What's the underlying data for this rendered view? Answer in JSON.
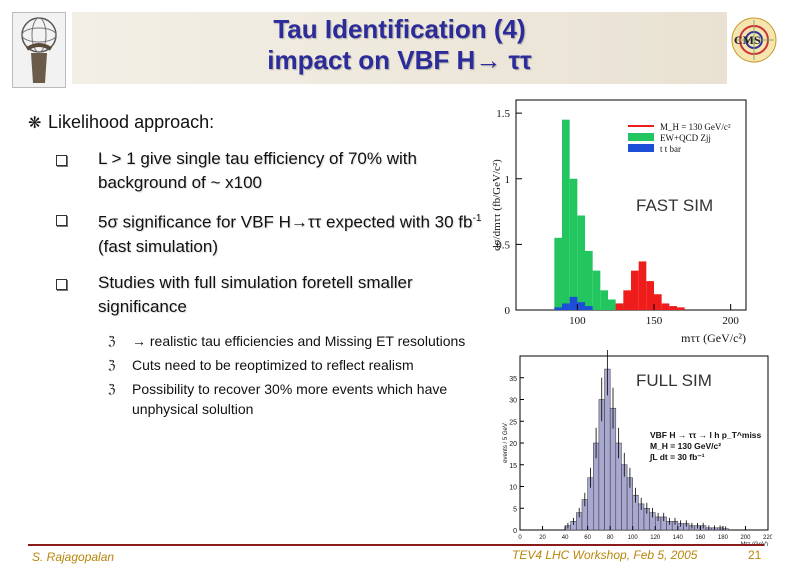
{
  "slide": {
    "title_line1": "Tau Identification (4)",
    "title_line2": "impact on VBF H→ ττ",
    "heading": "Likelihood approach:",
    "bullets": [
      {
        "text": "L > 1 give single  tau efficiency of 70% with background of ~ x100"
      },
      {
        "text_main": "5σ significance for VBF H→ττ expected with 30 fb",
        "text_sup": "-1",
        "text_tail": " (fast simulation)"
      },
      {
        "text": "Studies with full simulation foretell smaller significance"
      }
    ],
    "subbullets": [
      "→ realistic tau efficiencies and Missing ET resolutions",
      "Cuts need to be reoptimized to reflect realism",
      "Possibility to recover 30% more events which have unphysical solultion"
    ],
    "fast_label": "FAST SIM",
    "full_label": "FULL SIM",
    "footer_left": "S. Rajagopalan",
    "footer_center": "TEV4 LHC Workshop, Feb 5, 2005",
    "page_number": "21"
  },
  "chart_data": [
    {
      "type": "bar",
      "title": "",
      "ylabel": "dσ/dmττ (fb/GeV/c²)",
      "xlabel": "mττ (GeV/c²)",
      "xlim": [
        60,
        210
      ],
      "ylim": [
        0,
        1.6
      ],
      "x_ticks": [
        "100",
        "150",
        "200"
      ],
      "y_ticks": [
        "0",
        "0.5",
        "1",
        "1.5"
      ],
      "legend": [
        "M_H = 130 GeV/c²",
        "EW+QCD Zjj",
        "t t bar"
      ],
      "series": [
        {
          "name": "EW+QCD Zjj",
          "color": "#22c55e",
          "x": [
            85,
            90,
            95,
            100,
            105,
            110,
            115,
            120,
            125,
            130
          ],
          "values": [
            0.55,
            1.45,
            1.0,
            0.72,
            0.45,
            0.3,
            0.15,
            0.08,
            0.05,
            0.03
          ]
        },
        {
          "name": "M_H = 130 GeV/c²",
          "color": "#ef1c1c",
          "x": [
            125,
            130,
            135,
            140,
            145,
            150,
            155,
            160,
            165
          ],
          "values": [
            0.05,
            0.15,
            0.3,
            0.37,
            0.22,
            0.12,
            0.05,
            0.03,
            0.02
          ]
        },
        {
          "name": "t t bar",
          "color": "#1d4ed8",
          "x": [
            85,
            90,
            95,
            100,
            105
          ],
          "values": [
            0.02,
            0.05,
            0.1,
            0.06,
            0.03
          ]
        }
      ]
    },
    {
      "type": "bar",
      "title": "",
      "ylabel": "events / 5 GeV",
      "xlabel": "Mττ (GeV)",
      "xlim": [
        0,
        220
      ],
      "ylim": [
        0,
        40
      ],
      "x_ticks": [
        "0",
        "20",
        "40",
        "60",
        "80",
        "100",
        "120",
        "140",
        "160",
        "180",
        "200",
        "220"
      ],
      "y_ticks": [
        "0",
        "5",
        "10",
        "15",
        "20",
        "25",
        "30",
        "35"
      ],
      "annotations": [
        "VBF H → ττ → l h p_T^miss",
        "M_H = 130 GeV/c²",
        "∫L dt = 30 fb⁻¹"
      ],
      "bins_x": [
        40,
        45,
        50,
        55,
        60,
        65,
        70,
        75,
        80,
        85,
        90,
        95,
        100,
        105,
        110,
        115,
        120,
        125,
        130,
        135,
        140,
        145,
        150,
        155,
        160,
        165,
        170,
        175,
        180
      ],
      "values": [
        1,
        2,
        4,
        7,
        12,
        20,
        30,
        37,
        28,
        20,
        15,
        12,
        8,
        6,
        5,
        4,
        3,
        3,
        2,
        2,
        1.5,
        1.5,
        1,
        1,
        1,
        0.5,
        0.5,
        0.5,
        0.3
      ],
      "color": "#a8a8d0"
    }
  ]
}
